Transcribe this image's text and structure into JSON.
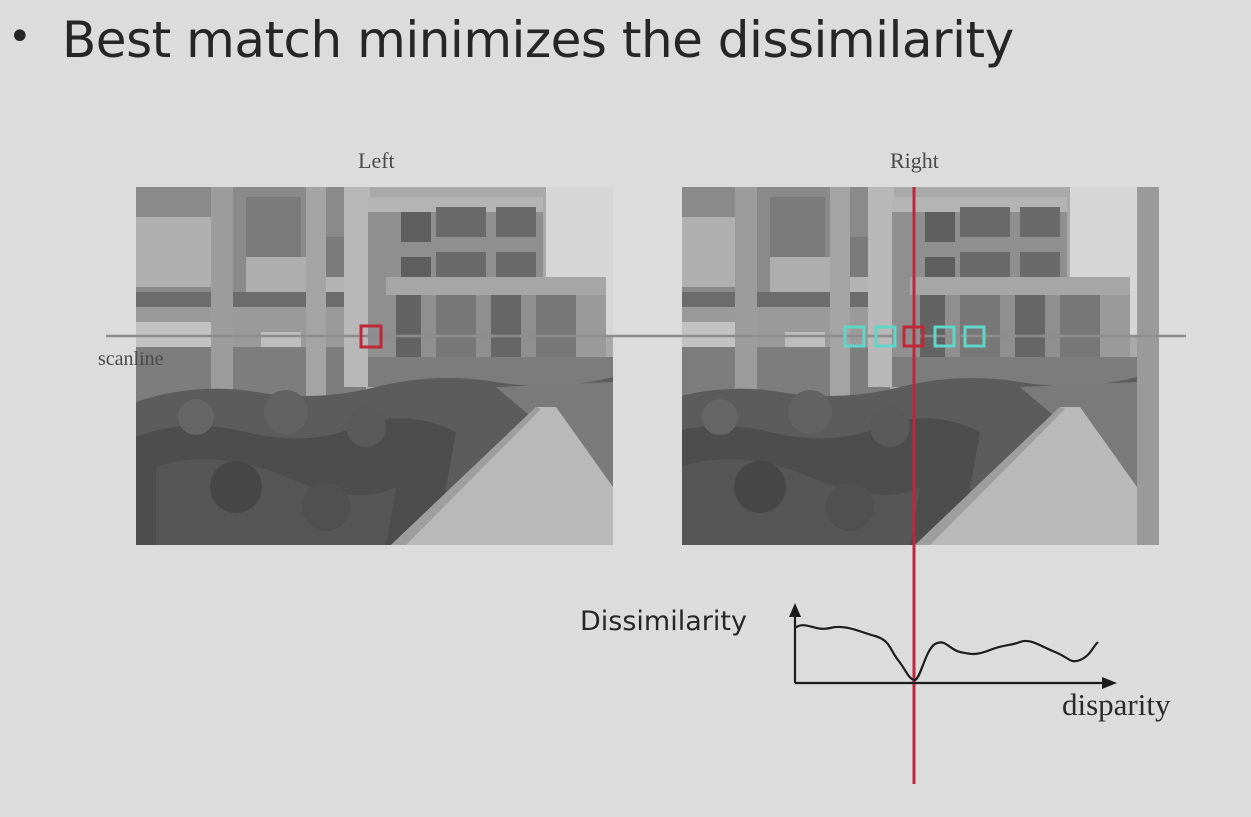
{
  "slide": {
    "bullet_symbol": "•",
    "bullet_text": "Best match minimizes the dissimilarity"
  },
  "figure": {
    "left_label": "Left",
    "right_label": "Right",
    "scanline_label": "scanline",
    "dissimilarity_label": "Dissimilarity",
    "disparity_label": "disparity",
    "colors": {
      "match_marker": "#c0283a",
      "candidate_window": "#5fd6c8",
      "scanline": "#8c8c8c"
    }
  }
}
